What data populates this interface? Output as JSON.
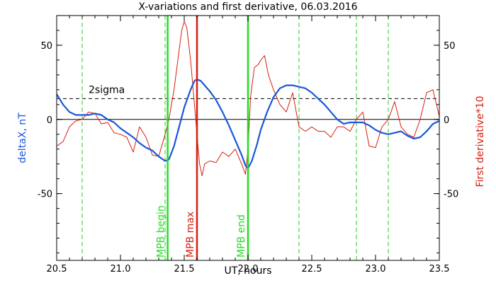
{
  "chart_data": {
    "type": "line",
    "title": "X-variations and first derivative, 06.03.2016",
    "xlabel": "UT, hours",
    "ylabel_left": "deltaX, nT",
    "ylabel_right": "First derivative*10",
    "xlim": [
      20.5,
      23.5
    ],
    "ylim": [
      -95,
      70
    ],
    "x_ticks": [
      20.5,
      21.0,
      21.5,
      22.0,
      22.5,
      23.0,
      23.5
    ],
    "x_tick_labels": [
      "20.5",
      "21.0",
      "21.5",
      "22.0",
      "22.5",
      "23.0",
      "23.5"
    ],
    "y_ticks": [
      -50,
      0,
      50
    ],
    "y_tick_labels": [
      "-50",
      "0",
      "50"
    ],
    "grid": false,
    "zero_line": 0,
    "sigma_line": {
      "value": 14,
      "label": "2sigma"
    },
    "colors": {
      "deltaX": "#1a56db",
      "derivative": "#d61f10",
      "mpb": "#22dd22",
      "mpb_max": "#d61f10",
      "dashed_green": "#22cc22",
      "axes": "#000000",
      "left_label": "#1a56db",
      "right_label": "#d61f10"
    },
    "dashed_green_lines": [
      20.7,
      21.35,
      22.4,
      22.85,
      23.1
    ],
    "vertical_markers": [
      {
        "x": 21.37,
        "label": "MPB begin",
        "kind": "mpb"
      },
      {
        "x": 21.6,
        "label": "MPB max",
        "kind": "mpb_max"
      },
      {
        "x": 22.0,
        "label": "MPB end",
        "kind": "mpb"
      }
    ],
    "series": [
      {
        "key": "deltaX",
        "x": [
          20.5,
          20.55,
          20.6,
          20.65,
          20.7,
          20.75,
          20.8,
          20.85,
          20.9,
          20.95,
          21.0,
          21.05,
          21.1,
          21.15,
          21.2,
          21.25,
          21.3,
          21.35,
          21.38,
          21.42,
          21.46,
          21.5,
          21.55,
          21.58,
          21.6,
          21.63,
          21.66,
          21.7,
          21.75,
          21.8,
          21.85,
          21.9,
          21.95,
          21.98,
          22.0,
          22.03,
          22.07,
          22.1,
          22.15,
          22.2,
          22.25,
          22.3,
          22.35,
          22.4,
          22.45,
          22.5,
          22.55,
          22.6,
          22.65,
          22.7,
          22.75,
          22.8,
          22.85,
          22.9,
          22.95,
          23.0,
          23.05,
          23.1,
          23.15,
          23.2,
          23.25,
          23.3,
          23.35,
          23.4,
          23.45,
          23.5
        ],
        "values": [
          17,
          10,
          5,
          3,
          3,
          3,
          4,
          3,
          0,
          -2,
          -6,
          -9,
          -12,
          -16,
          -19,
          -21,
          -25,
          -28,
          -27,
          -18,
          -5,
          8,
          20,
          26,
          27,
          26,
          23,
          19,
          13,
          5,
          -4,
          -14,
          -24,
          -31,
          -33,
          -28,
          -17,
          -7,
          5,
          15,
          21,
          23,
          23,
          22,
          21,
          18,
          14,
          10,
          5,
          0,
          -3,
          -2,
          -2,
          -2,
          -4,
          -7,
          -9,
          -10,
          -9,
          -8,
          -11,
          -13,
          -12,
          -8,
          -3,
          -1
        ]
      },
      {
        "key": "derivative",
        "x": [
          20.5,
          20.55,
          20.6,
          20.65,
          20.7,
          20.75,
          20.8,
          20.85,
          20.9,
          20.95,
          21.0,
          21.05,
          21.1,
          21.15,
          21.2,
          21.25,
          21.3,
          21.35,
          21.38,
          21.42,
          21.45,
          21.48,
          21.5,
          21.52,
          21.55,
          21.58,
          21.6,
          21.62,
          21.64,
          21.66,
          21.7,
          21.75,
          21.8,
          21.85,
          21.9,
          21.95,
          21.98,
          22.0,
          22.02,
          22.05,
          22.08,
          22.1,
          22.13,
          22.16,
          22.2,
          22.25,
          22.3,
          22.35,
          22.4,
          22.45,
          22.5,
          22.55,
          22.6,
          22.65,
          22.7,
          22.75,
          22.8,
          22.85,
          22.9,
          22.95,
          23.0,
          23.05,
          23.1,
          23.15,
          23.2,
          23.25,
          23.3,
          23.35,
          23.4,
          23.45,
          23.5
        ],
        "values": [
          -18,
          -15,
          -5,
          -1,
          0,
          5,
          4,
          -3,
          -2,
          -9,
          -10,
          -12,
          -22,
          -5,
          -12,
          -24,
          -25,
          -10,
          0,
          20,
          40,
          60,
          66,
          62,
          40,
          10,
          -10,
          -30,
          -38,
          -30,
          -28,
          -29,
          -22,
          -25,
          -20,
          -30,
          -37,
          -20,
          15,
          35,
          37,
          40,
          43,
          30,
          20,
          10,
          5,
          18,
          -5,
          -8,
          -5,
          -8,
          -8,
          -12,
          -5,
          -5,
          -8,
          0,
          5,
          -18,
          -19,
          -5,
          0,
          12,
          -5,
          -10,
          -12,
          0,
          18,
          20,
          2
        ]
      }
    ]
  }
}
